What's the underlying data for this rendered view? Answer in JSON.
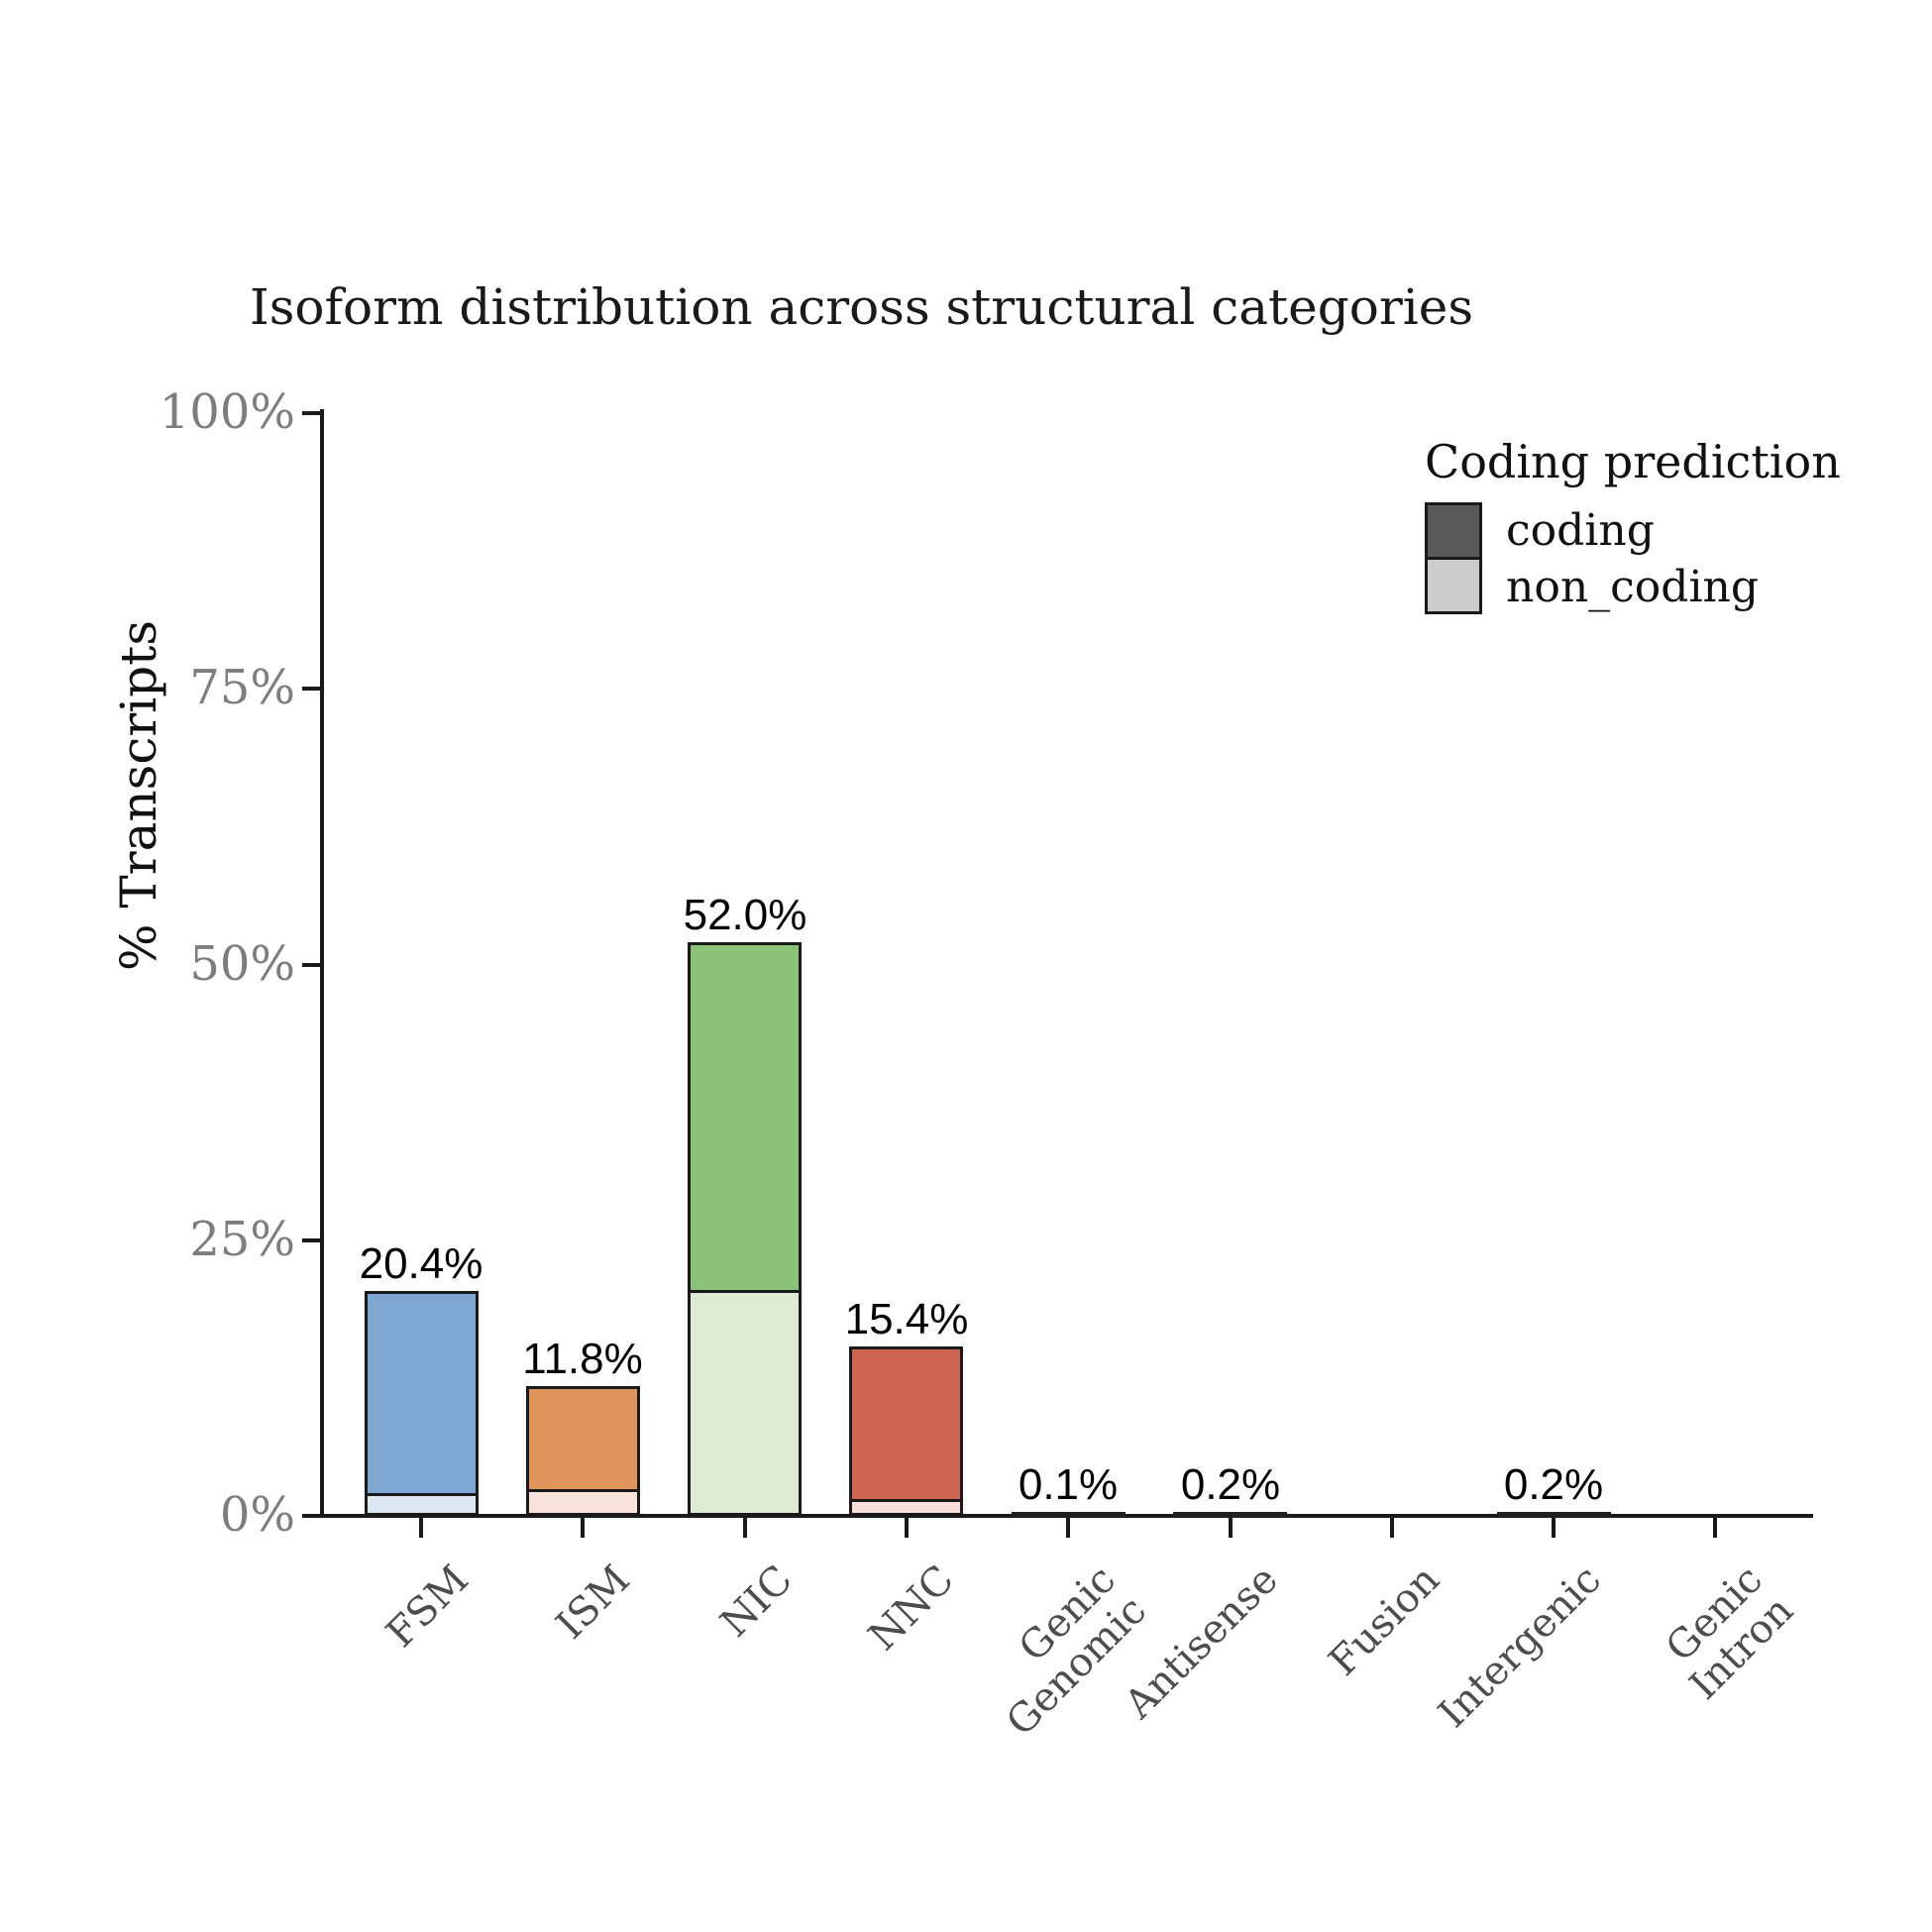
{
  "chart_data": {
    "type": "bar",
    "stacked": true,
    "title": "Isoform distribution across structural categories",
    "ylabel": "% Transcripts",
    "xlabel": "",
    "ylim": [
      0,
      100
    ],
    "grid": false,
    "legend_position": "top-right-inside",
    "y_ticks": [
      {
        "label": "0%",
        "value": 0
      },
      {
        "label": "25%",
        "value": 25
      },
      {
        "label": "50%",
        "value": 50
      },
      {
        "label": "75%",
        "value": 75
      },
      {
        "label": "100%",
        "value": 100
      }
    ],
    "legend": {
      "title": "Coding prediction",
      "items": [
        {
          "label": "coding",
          "color": "#595959"
        },
        {
          "label": "non_coding",
          "color": "#cccccc"
        }
      ]
    },
    "series_names": [
      "coding",
      "non_coding"
    ],
    "categories": [
      {
        "label": "FSM",
        "total": 20.4,
        "total_label": "20.4%",
        "coding": 18.6,
        "non_coding": 1.8,
        "coding_color": "#7EA6D3",
        "non_coding_color": "#DDE7F2"
      },
      {
        "label": "ISM",
        "total": 11.8,
        "total_label": "11.8%",
        "coding": 9.6,
        "non_coding": 2.2,
        "coding_color": "#DF945C",
        "non_coding_color": "#F9E2D9"
      },
      {
        "label": "NIC",
        "total": 52.0,
        "total_label": "52.0%",
        "coding": 31.8,
        "non_coding": 20.2,
        "coding_color": "#8CC17A",
        "non_coding_color": "#DDEBD5"
      },
      {
        "label": "NNC",
        "total": 15.4,
        "total_label": "15.4%",
        "coding": 14.1,
        "non_coding": 1.3,
        "coding_color": "#CD6552",
        "non_coding_color": "#F5DFD8"
      },
      {
        "label": "Genic\nGenomic",
        "total": 0.1,
        "total_label": "0.1%",
        "coding": 0.1,
        "non_coding": 0.0,
        "coding_color": "#4d4d4d",
        "non_coding_color": "#d9d9d9"
      },
      {
        "label": "Antisense",
        "total": 0.2,
        "total_label": "0.2%",
        "coding": 0.2,
        "non_coding": 0.0,
        "coding_color": "#4d4d4d",
        "non_coding_color": "#d9d9d9"
      },
      {
        "label": "Fusion",
        "total": 0.0,
        "total_label": null,
        "coding": 0.0,
        "non_coding": 0.0,
        "coding_color": "#4d4d4d",
        "non_coding_color": "#d9d9d9"
      },
      {
        "label": "Intergenic",
        "total": 0.2,
        "total_label": "0.2%",
        "coding": 0.2,
        "non_coding": 0.0,
        "coding_color": "#4d4d4d",
        "non_coding_color": "#d9d9d9"
      },
      {
        "label": "Genic\nIntron",
        "total": 0.0,
        "total_label": null,
        "coding": 0.0,
        "non_coding": 0.0,
        "coding_color": "#4d4d4d",
        "non_coding_color": "#d9d9d9"
      }
    ]
  },
  "colors": {
    "axis": "#1a1a1a",
    "y_tick_label": "#7d7d7d",
    "x_tick_label": "#4d4d4d",
    "title": "#1a1a1a",
    "background": "#ffffff"
  }
}
